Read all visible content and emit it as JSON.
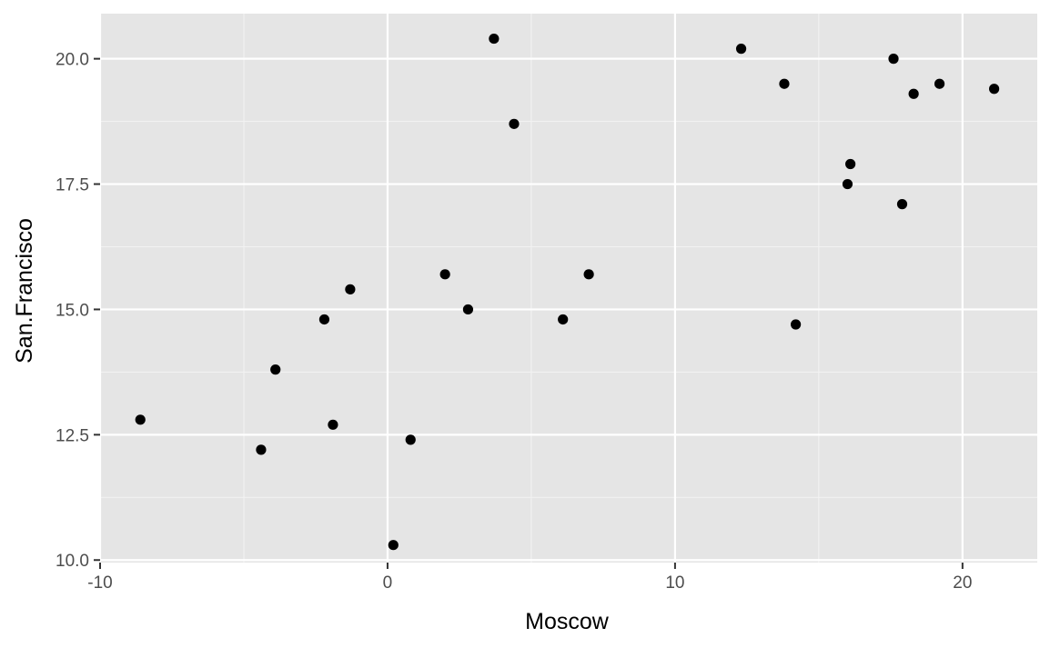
{
  "chart_data": {
    "type": "scatter",
    "title": "",
    "xlabel": "Moscow",
    "ylabel": "San.Francisco",
    "xlim": [
      -10,
      22.6
    ],
    "ylim": [
      9.95,
      20.9
    ],
    "xticks": [
      -10,
      0,
      10,
      20
    ],
    "xtick_labels": [
      "-10",
      "0",
      "10",
      "20"
    ],
    "x_minor_ticks": [
      -5,
      5,
      15
    ],
    "yticks": [
      10.0,
      12.5,
      15.0,
      17.5,
      20.0
    ],
    "ytick_labels": [
      "10.0",
      "12.5",
      "15.0",
      "17.5",
      "20.0"
    ],
    "y_minor_ticks": [
      11.25,
      13.75,
      16.25,
      18.75
    ],
    "grid": true,
    "colors": {
      "panel_background": "#e5e5e5",
      "grid_major": "#ffffff",
      "grid_minor": "#f2f2f2",
      "point": "#000000",
      "tick_text": "#4d4d4d",
      "tick_mark": "#333333"
    },
    "points": [
      {
        "x": -8.6,
        "y": 12.8
      },
      {
        "x": -4.4,
        "y": 12.2
      },
      {
        "x": -3.9,
        "y": 13.8
      },
      {
        "x": -2.2,
        "y": 14.8
      },
      {
        "x": -1.9,
        "y": 12.7
      },
      {
        "x": -1.3,
        "y": 15.4
      },
      {
        "x": 0.2,
        "y": 10.3
      },
      {
        "x": 0.8,
        "y": 12.4
      },
      {
        "x": 2.0,
        "y": 15.7
      },
      {
        "x": 2.8,
        "y": 15.0
      },
      {
        "x": 3.7,
        "y": 20.4
      },
      {
        "x": 4.4,
        "y": 18.7
      },
      {
        "x": 6.1,
        "y": 14.8
      },
      {
        "x": 7.0,
        "y": 15.7
      },
      {
        "x": 12.3,
        "y": 20.2
      },
      {
        "x": 13.8,
        "y": 19.5
      },
      {
        "x": 14.2,
        "y": 14.7
      },
      {
        "x": 16.0,
        "y": 17.5
      },
      {
        "x": 16.1,
        "y": 17.9
      },
      {
        "x": 17.6,
        "y": 20.0
      },
      {
        "x": 17.9,
        "y": 17.1
      },
      {
        "x": 18.3,
        "y": 19.3
      },
      {
        "x": 19.2,
        "y": 19.5
      },
      {
        "x": 21.1,
        "y": 19.4
      }
    ]
  }
}
